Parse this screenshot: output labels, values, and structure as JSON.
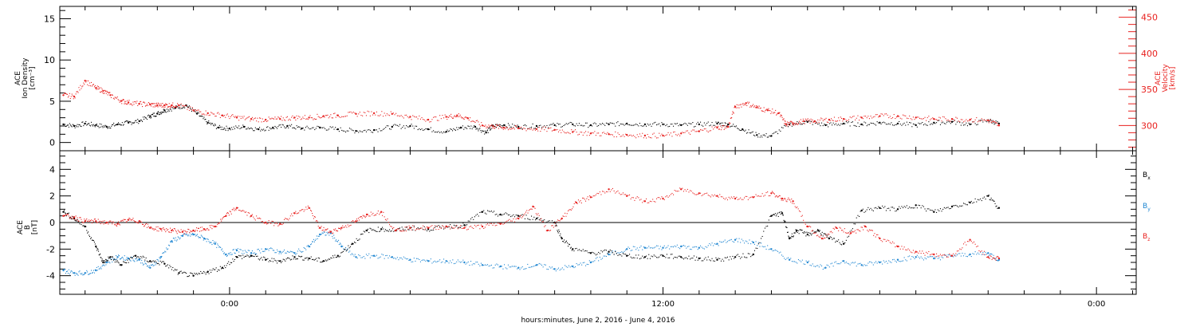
{
  "colors": {
    "black": "#000000",
    "red": "#e8201e",
    "blue": "#1f86d1"
  },
  "x_axis": {
    "label": "hours:minutes, June  2, 2016 - June  4, 2016",
    "range_hours": [
      -4.7,
      25.1
    ],
    "tick_labels": [
      {
        "hour": 0,
        "text": "0:00"
      },
      {
        "hour": 12,
        "text": "12:00"
      },
      {
        "hour": 24,
        "text": "0:00"
      }
    ]
  },
  "chart_data": [
    {
      "type": "scatter",
      "panel": "top",
      "ylabel_left": [
        "ACE",
        "Ion Density",
        "[cm⁻³]"
      ],
      "ylabel_right": [
        "ACE",
        "Velocity",
        "[km/s]"
      ],
      "ylim_left": [
        -1,
        16.5
      ],
      "ylim_right": [
        265,
        465
      ],
      "left_ticks": [
        "0",
        "5",
        "10",
        "15"
      ],
      "right_ticks": [
        "300",
        "350",
        "400",
        "450"
      ],
      "grid": false,
      "series": [
        {
          "name": "Ion Density",
          "axis": "left",
          "color": "black",
          "x": [
            -4.6,
            -4.3,
            -4.0,
            -3.7,
            -3.4,
            -3.1,
            -2.8,
            -2.5,
            -2.2,
            -2.0,
            -1.8,
            -1.5,
            -1.2,
            -0.9,
            -0.6,
            -0.3,
            0.0,
            0.4,
            0.8,
            1.2,
            1.6,
            2.0,
            2.5,
            3.0,
            3.5,
            4.0,
            4.5,
            5.0,
            5.5,
            6.0,
            6.4,
            6.8,
            7.1,
            7.3,
            7.6,
            8.0,
            8.5,
            9.0,
            9.5,
            10.0,
            10.5,
            11.0,
            11.5,
            12.0,
            12.5,
            13.0,
            13.5,
            13.8,
            14.2,
            14.6,
            15.0,
            15.5,
            16.0,
            16.5,
            17.0,
            17.5,
            18.0,
            18.5,
            19.0,
            19.5,
            20.0,
            20.5,
            21.0,
            21.3
          ],
          "y": [
            2.2,
            2.0,
            2.3,
            2.1,
            1.9,
            2.2,
            2.4,
            2.6,
            3.2,
            3.5,
            3.9,
            4.2,
            4.5,
            3.5,
            2.4,
            1.8,
            1.7,
            1.9,
            1.6,
            1.8,
            2.0,
            1.7,
            1.8,
            1.6,
            1.4,
            1.5,
            1.9,
            2.0,
            1.6,
            1.3,
            1.8,
            1.9,
            1.2,
            2.0,
            2.1,
            1.9,
            2.0,
            2.1,
            2.2,
            2.1,
            2.2,
            2.3,
            2.2,
            2.2,
            2.1,
            2.2,
            2.3,
            2.2,
            1.6,
            0.9,
            0.8,
            2.2,
            2.5,
            2.1,
            2.3,
            2.2,
            2.4,
            2.3,
            2.1,
            2.4,
            2.5,
            2.2,
            2.7,
            2.3
          ]
        },
        {
          "name": "Velocity",
          "axis": "right",
          "color": "red",
          "x": [
            -4.6,
            -4.3,
            -4.0,
            -3.7,
            -3.5,
            -3.3,
            -3.0,
            -2.8,
            -2.5,
            -2.2,
            -2.0,
            -1.8,
            -1.6,
            -1.4,
            -1.0,
            -0.6,
            -0.2,
            0.2,
            0.6,
            1.0,
            1.4,
            1.8,
            2.2,
            2.6,
            3.0,
            3.5,
            4.0,
            4.5,
            5.0,
            5.5,
            6.0,
            6.3,
            6.6,
            7.0,
            7.3,
            7.6,
            8.0,
            8.5,
            9.0,
            9.5,
            10.0,
            10.5,
            11.0,
            11.5,
            12.0,
            12.5,
            13.0,
            13.5,
            13.8,
            14.0,
            14.3,
            14.6,
            14.9,
            15.2,
            15.4,
            15.6,
            15.9,
            16.2,
            16.6,
            17.0,
            17.5,
            18.0,
            18.5,
            19.0,
            19.5,
            20.0,
            20.5,
            21.0,
            21.3
          ],
          "y": [
            342,
            340,
            362,
            352,
            348,
            342,
            334,
            332,
            330,
            329,
            328,
            328,
            328,
            328,
            321,
            317,
            314,
            311,
            309,
            308,
            309,
            311,
            311,
            313,
            314,
            316,
            317,
            316,
            312,
            308,
            312,
            314,
            310,
            300,
            299,
            297,
            296,
            295,
            294,
            291,
            289,
            288,
            287,
            286,
            286,
            289,
            292,
            297,
            298,
            326,
            331,
            325,
            321,
            317,
            302,
            303,
            306,
            306,
            308,
            309,
            311,
            313,
            313,
            311,
            309,
            309,
            308,
            307,
            300
          ]
        }
      ]
    },
    {
      "type": "scatter",
      "panel": "bottom",
      "ylabel_left": [
        "ACE",
        "B",
        "[nT]"
      ],
      "ylim": [
        -5.4,
        5.4
      ],
      "left_ticks": [
        "-4",
        "-2",
        "0",
        "2",
        "4"
      ],
      "zero_line": true,
      "grid": false,
      "series": [
        {
          "name": "B",
          "subscript": "x",
          "color": "black",
          "x": [
            -4.6,
            -4.3,
            -4.0,
            -3.7,
            -3.5,
            -3.3,
            -3.0,
            -2.6,
            -2.2,
            -1.8,
            -1.4,
            -1.0,
            -0.6,
            -0.2,
            0.2,
            0.6,
            1.0,
            1.4,
            1.8,
            2.2,
            2.6,
            3.0,
            3.4,
            3.8,
            4.2,
            4.6,
            5.0,
            5.5,
            6.0,
            6.5,
            7.0,
            7.5,
            8.0,
            8.5,
            9.0,
            9.2,
            9.5,
            10.0,
            10.5,
            11.0,
            11.5,
            12.0,
            12.5,
            13.0,
            13.5,
            14.0,
            14.5,
            15.0,
            15.3,
            15.5,
            15.7,
            16.0,
            16.3,
            16.6,
            17.0,
            17.5,
            18.0,
            18.5,
            19.0,
            19.5,
            20.0,
            20.5,
            21.0,
            21.3
          ],
          "y": [
            0.8,
            0.3,
            -0.3,
            -1.8,
            -3.0,
            -2.6,
            -3.2,
            -2.5,
            -2.9,
            -3.1,
            -3.8,
            -4.0,
            -3.7,
            -3.4,
            -2.6,
            -2.5,
            -2.8,
            -2.9,
            -2.6,
            -2.7,
            -2.9,
            -2.5,
            -1.6,
            -0.6,
            -0.5,
            -0.6,
            -0.4,
            -0.5,
            -0.3,
            -0.2,
            0.8,
            0.6,
            0.5,
            0.3,
            0.0,
            -1.2,
            -2.0,
            -2.3,
            -2.2,
            -2.5,
            -2.6,
            -2.5,
            -2.6,
            -2.7,
            -2.8,
            -2.6,
            -2.4,
            0.5,
            0.7,
            -1.2,
            -0.6,
            -0.9,
            -0.6,
            -1.2,
            -1.6,
            0.9,
            1.1,
            1.0,
            1.3,
            0.8,
            1.2,
            1.5,
            2.0,
            1.1
          ]
        },
        {
          "name": "B",
          "subscript": "y",
          "color": "blue",
          "x": [
            -4.6,
            -4.3,
            -4.0,
            -3.7,
            -3.4,
            -3.1,
            -2.8,
            -2.5,
            -2.2,
            -1.9,
            -1.6,
            -1.3,
            -1.0,
            -0.7,
            -0.4,
            -0.1,
            0.2,
            0.6,
            1.0,
            1.4,
            1.8,
            2.2,
            2.5,
            2.8,
            3.1,
            3.5,
            4.0,
            4.5,
            5.0,
            5.5,
            6.0,
            6.5,
            7.0,
            7.5,
            8.0,
            8.5,
            9.0,
            9.5,
            10.0,
            10.5,
            11.0,
            11.5,
            12.0,
            12.5,
            13.0,
            13.5,
            14.0,
            14.5,
            15.0,
            15.5,
            16.0,
            16.5,
            17.0,
            17.5,
            18.0,
            18.5,
            19.0,
            19.5,
            20.0,
            20.5,
            21.0,
            21.3
          ],
          "y": [
            -3.6,
            -3.8,
            -3.8,
            -3.6,
            -3.0,
            -2.6,
            -2.7,
            -2.8,
            -3.4,
            -2.6,
            -1.4,
            -1.0,
            -0.9,
            -1.2,
            -1.6,
            -2.4,
            -2.1,
            -2.3,
            -2.0,
            -2.2,
            -2.3,
            -1.8,
            -0.9,
            -0.8,
            -1.8,
            -2.6,
            -2.5,
            -2.6,
            -2.8,
            -2.9,
            -2.9,
            -3.0,
            -3.2,
            -3.3,
            -3.4,
            -3.2,
            -3.5,
            -3.3,
            -3.0,
            -2.4,
            -2.0,
            -1.9,
            -1.9,
            -1.8,
            -1.9,
            -1.6,
            -1.3,
            -1.5,
            -2.0,
            -2.8,
            -3.0,
            -3.4,
            -2.9,
            -3.2,
            -3.0,
            -2.8,
            -2.6,
            -2.7,
            -2.5,
            -2.4,
            -2.3,
            -2.8
          ]
        },
        {
          "name": "B",
          "subscript": "z",
          "color": "red",
          "x": [
            -4.6,
            -4.3,
            -4.0,
            -3.7,
            -3.4,
            -3.1,
            -2.8,
            -2.5,
            -2.2,
            -1.9,
            -1.6,
            -1.3,
            -1.0,
            -0.7,
            -0.4,
            -0.1,
            0.2,
            0.6,
            1.0,
            1.4,
            1.8,
            2.2,
            2.5,
            2.8,
            3.1,
            3.5,
            3.8,
            4.2,
            4.6,
            5.0,
            5.5,
            6.0,
            6.5,
            7.0,
            7.5,
            8.0,
            8.4,
            8.8,
            9.2,
            9.6,
            10.0,
            10.5,
            11.0,
            11.5,
            12.0,
            12.5,
            13.0,
            13.5,
            14.0,
            14.5,
            15.0,
            15.3,
            15.6,
            16.0,
            16.4,
            16.8,
            17.2,
            17.6,
            18.0,
            18.5,
            19.0,
            19.5,
            20.0,
            20.5,
            21.0,
            21.3
          ],
          "y": [
            0.5,
            0.4,
            0.1,
            0.1,
            0.0,
            -0.1,
            0.2,
            0.1,
            -0.4,
            -0.5,
            -0.6,
            -0.7,
            -0.6,
            -0.5,
            -0.3,
            0.5,
            1.1,
            0.5,
            0.0,
            -0.1,
            0.7,
            1.1,
            -0.4,
            -0.7,
            -0.4,
            0.1,
            0.6,
            0.8,
            -0.6,
            -0.4,
            -0.4,
            -0.3,
            -0.4,
            -0.3,
            -0.1,
            0.3,
            1.2,
            -0.6,
            0.3,
            1.5,
            1.9,
            2.5,
            2.0,
            1.6,
            1.8,
            2.5,
            2.2,
            2.0,
            1.8,
            1.9,
            2.2,
            1.8,
            1.6,
            -0.3,
            -1.2,
            -0.4,
            -0.8,
            -0.3,
            -1.2,
            -1.8,
            -2.2,
            -2.4,
            -2.5,
            -1.3,
            -2.6,
            -2.7
          ]
        }
      ]
    }
  ]
}
